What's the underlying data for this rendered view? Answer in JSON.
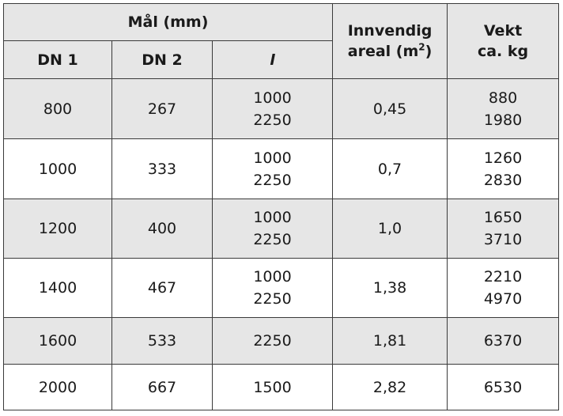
{
  "header": {
    "group_label": "Mål (mm)",
    "col_dn1": "DN 1",
    "col_dn2": "DN 2",
    "col_l": "l",
    "col_area_line1": "Innvendig",
    "col_area_line2_text": "areal (m",
    "col_area_sup": "2",
    "col_area_close": ")",
    "col_weight_line1": "Vekt",
    "col_weight_line2": "ca. kg"
  },
  "rows": [
    {
      "dn1": "800",
      "dn2": "267",
      "l1": "1000",
      "l2": "2250",
      "area": "0,45",
      "w1": "880",
      "w2": "1980"
    },
    {
      "dn1": "1000",
      "dn2": "333",
      "l1": "1000",
      "l2": "2250",
      "area": "0,7",
      "w1": "1260",
      "w2": "2830"
    },
    {
      "dn1": "1200",
      "dn2": "400",
      "l1": "1000",
      "l2": "2250",
      "area": "1,0",
      "w1": "1650",
      "w2": "3710"
    },
    {
      "dn1": "1400",
      "dn2": "467",
      "l1": "1000",
      "l2": "2250",
      "area": "1,38",
      "w1": "2210",
      "w2": "4970"
    },
    {
      "dn1": "1600",
      "dn2": "533",
      "l1": "2250",
      "area": "1,81",
      "w1": "6370"
    },
    {
      "dn1": "2000",
      "dn2": "667",
      "l1": "1500",
      "area": "2,82",
      "w1": "6530"
    }
  ]
}
